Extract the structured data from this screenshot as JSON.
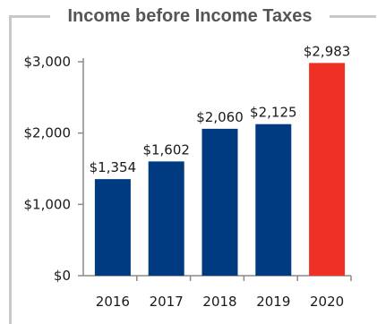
{
  "chart_data": {
    "type": "bar",
    "title": "Income before Income Taxes",
    "categories": [
      "2016",
      "2017",
      "2018",
      "2019",
      "2020"
    ],
    "values": [
      1354,
      1602,
      2060,
      2125,
      2983
    ],
    "data_labels": [
      "$1,354",
      "$1,602",
      "$2,060",
      "$2,125",
      "$2,983"
    ],
    "ylim": [
      0,
      3000
    ],
    "yticks": [
      0,
      1000,
      2000,
      3000
    ],
    "ytick_labels": [
      "$0",
      "$1,000",
      "$2,000",
      "$3,000"
    ],
    "xlabel": "",
    "ylabel": "",
    "grid": false,
    "bar_colors": [
      "#003a80",
      "#003a80",
      "#003a80",
      "#003a80",
      "#ee3124"
    ]
  }
}
